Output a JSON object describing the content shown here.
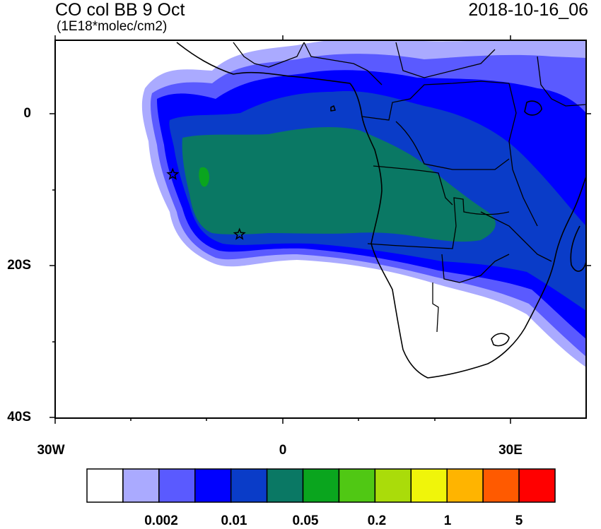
{
  "title": "CO col BB 9 Oct",
  "subtitle": "(1E18*molec/cm2)",
  "timestamp": "2018-10-16_06",
  "lat_labels": [
    "0",
    "20S",
    "40S"
  ],
  "lon_labels": [
    "30W",
    "0",
    "30E"
  ],
  "colorbar": {
    "colors": [
      "#ffffff",
      "#aaaaff",
      "#5a5aff",
      "#0000ff",
      "#0a3cc8",
      "#0a7864",
      "#0aa51e",
      "#50c814",
      "#aadc0a",
      "#f0f50a",
      "#ffb400",
      "#ff5a00",
      "#ff0000"
    ],
    "tick_labels": [
      "0.002",
      "0.01",
      "0.05",
      "0.2",
      "1",
      "5"
    ]
  },
  "markers": [
    {
      "type": "star",
      "lon": -14.5,
      "lat": -8
    },
    {
      "type": "star",
      "lon": -5.7,
      "lat": -15.9
    }
  ]
}
